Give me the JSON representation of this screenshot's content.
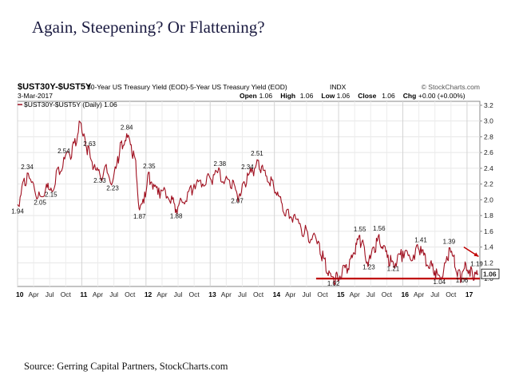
{
  "slide": {
    "title": "Again, Steepening?  Or Flattening?",
    "source": "Source: Gerring Capital Partners, StockCharts.com"
  },
  "header": {
    "symbol": "$UST30Y-$UST5Y",
    "description": "30-Year US Treasury Yield (EOD)-5-Year US Treasury Yield (EOD)",
    "exchange": "INDX",
    "watermark": "© StockCharts.com",
    "date": "3-Mar-2017",
    "ohlc": [
      {
        "label": "Open",
        "value": "1.06"
      },
      {
        "label": "High",
        "value": "1.06"
      },
      {
        "label": "Low",
        "value": "1.06"
      },
      {
        "label": "Close",
        "value": "1.06"
      },
      {
        "label": "Chg",
        "value": "+0.00 (+0.00%)"
      }
    ]
  },
  "chart_data": {
    "type": "line",
    "legend": "$UST30Y-$UST5Y (Daily) 1.06",
    "legend_position": "top-left",
    "last_value_label": "1.06",
    "series_color": "#a01020",
    "grid": true,
    "ylim": [
      0.9,
      3.25
    ],
    "ylabel_side": "right",
    "yticks": [
      1.0,
      1.2,
      1.4,
      1.6,
      1.8,
      2.0,
      2.2,
      2.4,
      2.6,
      2.8,
      3.0,
      3.2
    ],
    "xlim": [
      2010.0,
      2017.2
    ],
    "xticks": [
      {
        "t": 2010.0,
        "label": "10",
        "year": true
      },
      {
        "t": 2010.25,
        "label": "Apr"
      },
      {
        "t": 2010.5,
        "label": "Jul"
      },
      {
        "t": 2010.75,
        "label": "Oct"
      },
      {
        "t": 2011.0,
        "label": "11",
        "year": true
      },
      {
        "t": 2011.25,
        "label": "Apr"
      },
      {
        "t": 2011.5,
        "label": "Jul"
      },
      {
        "t": 2011.75,
        "label": "Oct"
      },
      {
        "t": 2012.0,
        "label": "12",
        "year": true
      },
      {
        "t": 2012.25,
        "label": "Apr"
      },
      {
        "t": 2012.5,
        "label": "Jul"
      },
      {
        "t": 2012.75,
        "label": "Oct"
      },
      {
        "t": 2013.0,
        "label": "13",
        "year": true
      },
      {
        "t": 2013.25,
        "label": "Apr"
      },
      {
        "t": 2013.5,
        "label": "Jul"
      },
      {
        "t": 2013.75,
        "label": "Oct"
      },
      {
        "t": 2014.0,
        "label": "14",
        "year": true
      },
      {
        "t": 2014.25,
        "label": "Apr"
      },
      {
        "t": 2014.5,
        "label": "Jul"
      },
      {
        "t": 2014.75,
        "label": "Oct"
      },
      {
        "t": 2015.0,
        "label": "15",
        "year": true
      },
      {
        "t": 2015.25,
        "label": "Apr"
      },
      {
        "t": 2015.5,
        "label": "Jul"
      },
      {
        "t": 2015.75,
        "label": "Oct"
      },
      {
        "t": 2016.0,
        "label": "16",
        "year": true
      },
      {
        "t": 2016.25,
        "label": "Apr"
      },
      {
        "t": 2016.5,
        "label": "Jul"
      },
      {
        "t": 2016.75,
        "label": "Oct"
      },
      {
        "t": 2017.0,
        "label": "17",
        "year": true
      }
    ],
    "series": [
      {
        "points": [
          [
            2010.0,
            1.94
          ],
          [
            2010.08,
            2.22
          ],
          [
            2010.15,
            2.34
          ],
          [
            2010.25,
            2.2
          ],
          [
            2010.35,
            2.05
          ],
          [
            2010.45,
            2.2
          ],
          [
            2010.52,
            2.15
          ],
          [
            2010.62,
            2.4
          ],
          [
            2010.72,
            2.54
          ],
          [
            2010.8,
            2.6
          ],
          [
            2010.88,
            2.72
          ],
          [
            2010.96,
            3.0
          ],
          [
            2011.05,
            2.78
          ],
          [
            2011.12,
            2.63
          ],
          [
            2011.2,
            2.45
          ],
          [
            2011.28,
            2.33
          ],
          [
            2011.38,
            2.45
          ],
          [
            2011.48,
            2.23
          ],
          [
            2011.56,
            2.55
          ],
          [
            2011.62,
            2.75
          ],
          [
            2011.7,
            2.84
          ],
          [
            2011.77,
            2.7
          ],
          [
            2011.84,
            2.5
          ],
          [
            2011.9,
            1.87
          ],
          [
            2011.98,
            2.1
          ],
          [
            2012.05,
            2.35
          ],
          [
            2012.12,
            2.2
          ],
          [
            2012.2,
            2.15
          ],
          [
            2012.3,
            2.12
          ],
          [
            2012.4,
            2.05
          ],
          [
            2012.47,
            1.88
          ],
          [
            2012.55,
            2.0
          ],
          [
            2012.65,
            2.1
          ],
          [
            2012.75,
            2.2
          ],
          [
            2012.85,
            2.25
          ],
          [
            2012.95,
            2.3
          ],
          [
            2013.05,
            2.32
          ],
          [
            2013.15,
            2.38
          ],
          [
            2013.25,
            2.3
          ],
          [
            2013.35,
            2.25
          ],
          [
            2013.42,
            2.07
          ],
          [
            2013.5,
            2.2
          ],
          [
            2013.58,
            2.34
          ],
          [
            2013.65,
            2.4
          ],
          [
            2013.73,
            2.51
          ],
          [
            2013.8,
            2.42
          ],
          [
            2013.88,
            2.3
          ],
          [
            2013.96,
            2.25
          ],
          [
            2014.05,
            2.1
          ],
          [
            2014.12,
            1.95
          ],
          [
            2014.2,
            1.88
          ],
          [
            2014.3,
            1.8
          ],
          [
            2014.4,
            1.7
          ],
          [
            2014.5,
            1.62
          ],
          [
            2014.6,
            1.55
          ],
          [
            2014.7,
            1.45
          ],
          [
            2014.78,
            1.25
          ],
          [
            2014.85,
            1.1
          ],
          [
            2014.92,
            1.02
          ],
          [
            2014.98,
            1.05
          ],
          [
            2015.06,
            1.12
          ],
          [
            2015.12,
            1.18
          ],
          [
            2015.2,
            1.3
          ],
          [
            2015.27,
            1.45
          ],
          [
            2015.33,
            1.55
          ],
          [
            2015.4,
            1.4
          ],
          [
            2015.47,
            1.23
          ],
          [
            2015.55,
            1.4
          ],
          [
            2015.63,
            1.56
          ],
          [
            2015.7,
            1.42
          ],
          [
            2015.77,
            1.3
          ],
          [
            2015.85,
            1.21
          ],
          [
            2015.92,
            1.3
          ],
          [
            2016.0,
            1.35
          ],
          [
            2016.1,
            1.3
          ],
          [
            2016.2,
            1.38
          ],
          [
            2016.28,
            1.41
          ],
          [
            2016.35,
            1.3
          ],
          [
            2016.43,
            1.2
          ],
          [
            2016.5,
            1.1
          ],
          [
            2016.57,
            1.04
          ],
          [
            2016.65,
            1.2
          ],
          [
            2016.72,
            1.39
          ],
          [
            2016.8,
            1.3
          ],
          [
            2016.86,
            1.1
          ],
          [
            2016.92,
            1.06
          ],
          [
            2016.98,
            1.19
          ],
          [
            2017.06,
            1.15
          ],
          [
            2017.12,
            1.08
          ],
          [
            2017.17,
            1.06
          ]
        ]
      }
    ],
    "annotations": [
      {
        "t": 2010.0,
        "v": 1.94,
        "label": "1.94",
        "pos": "below"
      },
      {
        "t": 2010.15,
        "v": 2.34,
        "label": "2.34",
        "pos": "above"
      },
      {
        "t": 2010.35,
        "v": 2.05,
        "label": "2.05",
        "pos": "below"
      },
      {
        "t": 2010.52,
        "v": 2.15,
        "label": "2.15",
        "pos": "below"
      },
      {
        "t": 2010.72,
        "v": 2.54,
        "label": "2.54",
        "pos": "above"
      },
      {
        "t": 2011.12,
        "v": 2.63,
        "label": "2.63",
        "pos": "above"
      },
      {
        "t": 2011.28,
        "v": 2.33,
        "label": "2.33",
        "pos": "below"
      },
      {
        "t": 2011.48,
        "v": 2.23,
        "label": "2.23",
        "pos": "below"
      },
      {
        "t": 2011.7,
        "v": 2.84,
        "label": "2.84",
        "pos": "above"
      },
      {
        "t": 2011.9,
        "v": 1.87,
        "label": "1.87",
        "pos": "below"
      },
      {
        "t": 2012.05,
        "v": 2.35,
        "label": "2.35",
        "pos": "above"
      },
      {
        "t": 2012.47,
        "v": 1.88,
        "label": "1.88",
        "pos": "below"
      },
      {
        "t": 2013.15,
        "v": 2.38,
        "label": "2.38",
        "pos": "above"
      },
      {
        "t": 2013.42,
        "v": 2.07,
        "label": "2.07",
        "pos": "below"
      },
      {
        "t": 2013.58,
        "v": 2.34,
        "label": "2.34",
        "pos": "above"
      },
      {
        "t": 2013.73,
        "v": 2.51,
        "label": "2.51",
        "pos": "above"
      },
      {
        "t": 2014.92,
        "v": 1.02,
        "label": "1.02",
        "pos": "below"
      },
      {
        "t": 2015.33,
        "v": 1.55,
        "label": "1.55",
        "pos": "above"
      },
      {
        "t": 2015.47,
        "v": 1.23,
        "label": "1.23",
        "pos": "below"
      },
      {
        "t": 2015.63,
        "v": 1.56,
        "label": "1.56",
        "pos": "above"
      },
      {
        "t": 2015.85,
        "v": 1.21,
        "label": "1.21",
        "pos": "below"
      },
      {
        "t": 2016.28,
        "v": 1.41,
        "label": "1.41",
        "pos": "above"
      },
      {
        "t": 2016.57,
        "v": 1.04,
        "label": "1.04",
        "pos": "below"
      },
      {
        "t": 2016.72,
        "v": 1.39,
        "label": "1.39",
        "pos": "above"
      },
      {
        "t": 2016.92,
        "v": 1.06,
        "label": "1.06",
        "pos": "below"
      },
      {
        "t": 2016.98,
        "v": 1.19,
        "label": "1.19",
        "pos": "right"
      }
    ],
    "support_line": {
      "value": 1.0,
      "from": 2014.65,
      "to": 2017.2
    },
    "arrow": {
      "from": [
        2016.95,
        1.4
      ],
      "to": [
        2017.18,
        1.28
      ]
    }
  }
}
